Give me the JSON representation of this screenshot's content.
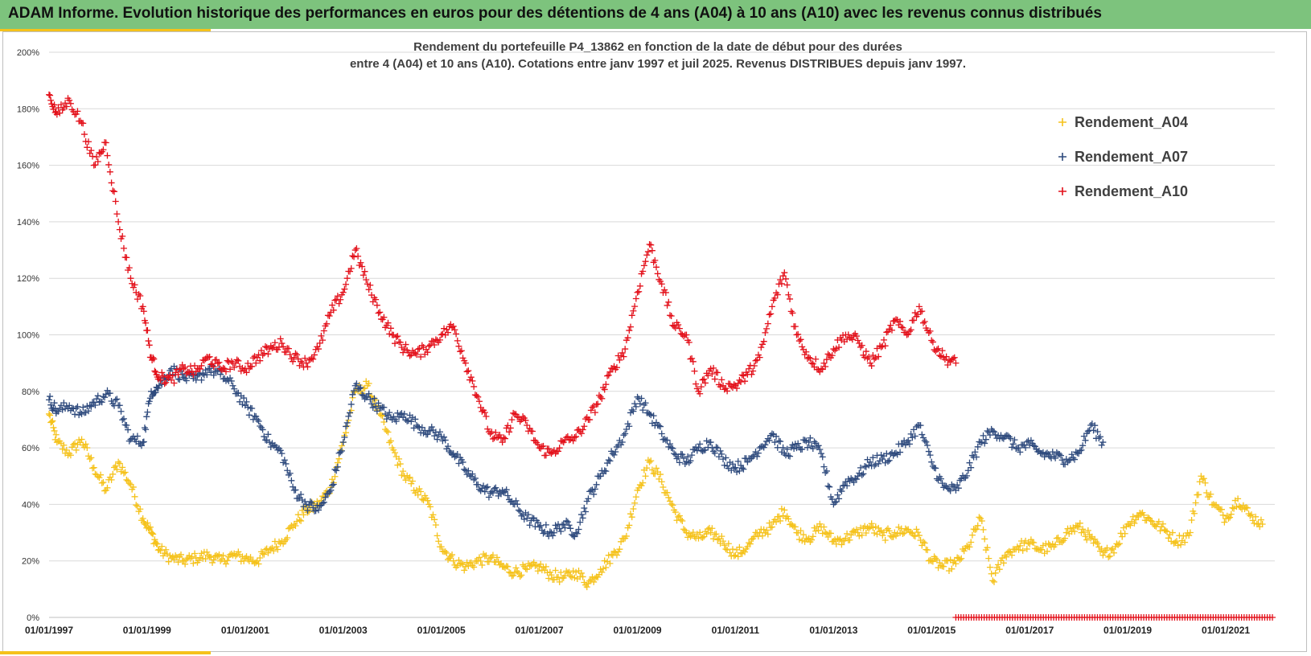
{
  "banner": {
    "title": "ADAM Informe. Evolution historique des performances en euros pour des détentions de 4 ans (A04) à 10 ans (A10) avec les revenus connus distribués"
  },
  "chart_data": {
    "type": "scatter",
    "title_line1": "Rendement du portefeuille P4_13862 en fonction de la date de début pour des durées",
    "title_line2": "entre 4 (A04) et 10 ans (A10). Cotations  entre janv 1997 et juil 2025. Revenus DISTRIBUES depuis janv 1997.",
    "x_axis": {
      "type": "date",
      "range": [
        "1997-01-01",
        "2022-01-01"
      ],
      "ticks": [
        "01/01/1997",
        "01/01/1999",
        "01/01/2001",
        "01/01/2003",
        "01/01/2005",
        "01/01/2007",
        "01/01/2009",
        "01/01/2011",
        "01/01/2013",
        "01/01/2015",
        "01/01/2017",
        "01/01/2019",
        "01/01/2021"
      ]
    },
    "y_axis": {
      "range": [
        0,
        200
      ],
      "unit": "%",
      "ticks": [
        "0%",
        "20%",
        "40%",
        "60%",
        "80%",
        "100%",
        "120%",
        "140%",
        "160%",
        "180%",
        "200%"
      ]
    },
    "grid": "horizontal",
    "legend_position": "top-right",
    "marker": "+",
    "series": [
      {
        "name": "Rendement_A04",
        "color": "#f5c21b",
        "points": [
          [
            "1997-01-01",
            72
          ],
          [
            "1997-03-01",
            62
          ],
          [
            "1997-06-01",
            58
          ],
          [
            "1997-09-01",
            63
          ],
          [
            "1997-12-01",
            53
          ],
          [
            "1998-03-01",
            45
          ],
          [
            "1998-06-01",
            55
          ],
          [
            "1998-09-01",
            47
          ],
          [
            "1998-12-01",
            35
          ],
          [
            "1999-02-01",
            30
          ],
          [
            "1999-04-01",
            24
          ],
          [
            "1999-07-01",
            21
          ],
          [
            "1999-10-01",
            20
          ],
          [
            "2000-01-01",
            21
          ],
          [
            "2000-04-01",
            22
          ],
          [
            "2000-07-01",
            20
          ],
          [
            "2000-10-01",
            22
          ],
          [
            "2001-01-01",
            21
          ],
          [
            "2001-04-01",
            20
          ],
          [
            "2001-07-01",
            24
          ],
          [
            "2001-10-01",
            27
          ],
          [
            "2002-01-01",
            33
          ],
          [
            "2002-04-01",
            38
          ],
          [
            "2002-07-01",
            40
          ],
          [
            "2002-10-01",
            46
          ],
          [
            "2003-01-01",
            62
          ],
          [
            "2003-04-01",
            80
          ],
          [
            "2003-07-01",
            82
          ],
          [
            "2003-10-01",
            72
          ],
          [
            "2004-01-01",
            60
          ],
          [
            "2004-04-01",
            50
          ],
          [
            "2004-07-01",
            45
          ],
          [
            "2004-10-01",
            40
          ],
          [
            "2005-01-01",
            25
          ],
          [
            "2005-04-01",
            20
          ],
          [
            "2005-07-01",
            18
          ],
          [
            "2005-10-01",
            20
          ],
          [
            "2006-01-01",
            21
          ],
          [
            "2006-04-01",
            18
          ],
          [
            "2006-07-01",
            16
          ],
          [
            "2006-10-01",
            17
          ],
          [
            "2007-01-01",
            18
          ],
          [
            "2007-04-01",
            15
          ],
          [
            "2007-07-01",
            14
          ],
          [
            "2007-10-01",
            16
          ],
          [
            "2008-01-01",
            12
          ],
          [
            "2008-04-01",
            17
          ],
          [
            "2008-07-01",
            22
          ],
          [
            "2008-10-01",
            28
          ],
          [
            "2009-01-01",
            45
          ],
          [
            "2009-04-01",
            55
          ],
          [
            "2009-07-01",
            48
          ],
          [
            "2009-10-01",
            38
          ],
          [
            "2010-01-01",
            30
          ],
          [
            "2010-04-01",
            28
          ],
          [
            "2010-07-01",
            30
          ],
          [
            "2010-10-01",
            27
          ],
          [
            "2011-01-01",
            22
          ],
          [
            "2011-04-01",
            25
          ],
          [
            "2011-07-01",
            30
          ],
          [
            "2011-10-01",
            32
          ],
          [
            "2012-01-01",
            38
          ],
          [
            "2012-04-01",
            30
          ],
          [
            "2012-07-01",
            28
          ],
          [
            "2012-10-01",
            32
          ],
          [
            "2013-01-01",
            27
          ],
          [
            "2013-04-01",
            28
          ],
          [
            "2013-07-01",
            30
          ],
          [
            "2013-10-01",
            32
          ],
          [
            "2014-01-01",
            29
          ],
          [
            "2014-04-01",
            30
          ],
          [
            "2014-07-01",
            31
          ],
          [
            "2014-10-01",
            29
          ],
          [
            "2015-01-01",
            20
          ],
          [
            "2015-04-01",
            18
          ],
          [
            "2015-07-01",
            19
          ],
          [
            "2015-10-01",
            25
          ],
          [
            "2016-01-01",
            35
          ],
          [
            "2016-04-01",
            13
          ],
          [
            "2016-07-01",
            22
          ],
          [
            "2016-10-01",
            25
          ],
          [
            "2017-01-01",
            26
          ],
          [
            "2017-04-01",
            24
          ],
          [
            "2017-07-01",
            25
          ],
          [
            "2017-10-01",
            30
          ],
          [
            "2018-01-01",
            32
          ],
          [
            "2018-04-01",
            28
          ],
          [
            "2018-07-01",
            22
          ],
          [
            "2018-10-01",
            25
          ],
          [
            "2019-01-01",
            33
          ],
          [
            "2019-04-01",
            37
          ],
          [
            "2019-07-01",
            34
          ],
          [
            "2019-10-01",
            31
          ],
          [
            "2020-01-01",
            27
          ],
          [
            "2020-04-01",
            29
          ],
          [
            "2020-07-01",
            50
          ],
          [
            "2020-10-01",
            40
          ],
          [
            "2021-01-01",
            35
          ],
          [
            "2021-04-01",
            42
          ],
          [
            "2021-07-01",
            36
          ],
          [
            "2021-10-01",
            33
          ]
        ]
      },
      {
        "name": "Rendement_A07",
        "color": "#2e4a7d",
        "points": [
          [
            "1997-01-01",
            77
          ],
          [
            "1997-03-01",
            73
          ],
          [
            "1997-06-01",
            75
          ],
          [
            "1997-09-01",
            72
          ],
          [
            "1997-12-01",
            76
          ],
          [
            "1998-03-01",
            79
          ],
          [
            "1998-06-01",
            75
          ],
          [
            "1998-09-01",
            63
          ],
          [
            "1998-12-01",
            62
          ],
          [
            "1999-02-01",
            80
          ],
          [
            "1999-04-01",
            82
          ],
          [
            "1999-07-01",
            88
          ],
          [
            "1999-10-01",
            85
          ],
          [
            "2000-01-01",
            84
          ],
          [
            "2000-04-01",
            88
          ],
          [
            "2000-07-01",
            86
          ],
          [
            "2000-10-01",
            82
          ],
          [
            "2001-01-01",
            75
          ],
          [
            "2001-04-01",
            70
          ],
          [
            "2001-07-01",
            62
          ],
          [
            "2001-10-01",
            58
          ],
          [
            "2002-01-01",
            45
          ],
          [
            "2002-04-01",
            40
          ],
          [
            "2002-07-01",
            38
          ],
          [
            "2002-10-01",
            45
          ],
          [
            "2003-01-01",
            62
          ],
          [
            "2003-04-01",
            82
          ],
          [
            "2003-07-01",
            78
          ],
          [
            "2003-10-01",
            74
          ],
          [
            "2004-01-01",
            70
          ],
          [
            "2004-04-01",
            72
          ],
          [
            "2004-07-01",
            68
          ],
          [
            "2004-10-01",
            66
          ],
          [
            "2005-01-01",
            64
          ],
          [
            "2005-04-01",
            58
          ],
          [
            "2005-07-01",
            52
          ],
          [
            "2005-10-01",
            47
          ],
          [
            "2006-01-01",
            44
          ],
          [
            "2006-04-01",
            45
          ],
          [
            "2006-07-01",
            40
          ],
          [
            "2006-10-01",
            35
          ],
          [
            "2007-01-01",
            32
          ],
          [
            "2007-04-01",
            30
          ],
          [
            "2007-07-01",
            33
          ],
          [
            "2007-10-01",
            30
          ],
          [
            "2008-01-01",
            42
          ],
          [
            "2008-04-01",
            50
          ],
          [
            "2008-07-01",
            58
          ],
          [
            "2008-10-01",
            65
          ],
          [
            "2009-01-01",
            78
          ],
          [
            "2009-04-01",
            72
          ],
          [
            "2009-07-01",
            65
          ],
          [
            "2009-10-01",
            58
          ],
          [
            "2010-01-01",
            55
          ],
          [
            "2010-04-01",
            60
          ],
          [
            "2010-07-01",
            62
          ],
          [
            "2010-10-01",
            56
          ],
          [
            "2011-01-01",
            53
          ],
          [
            "2011-04-01",
            55
          ],
          [
            "2011-07-01",
            60
          ],
          [
            "2011-10-01",
            65
          ],
          [
            "2012-01-01",
            58
          ],
          [
            "2012-04-01",
            60
          ],
          [
            "2012-07-01",
            62
          ],
          [
            "2012-10-01",
            58
          ],
          [
            "2013-01-01",
            40
          ],
          [
            "2013-04-01",
            48
          ],
          [
            "2013-07-01",
            50
          ],
          [
            "2013-10-01",
            55
          ],
          [
            "2014-01-01",
            56
          ],
          [
            "2014-04-01",
            58
          ],
          [
            "2014-07-01",
            62
          ],
          [
            "2014-10-01",
            68
          ],
          [
            "2015-01-01",
            55
          ],
          [
            "2015-04-01",
            46
          ],
          [
            "2015-07-01",
            45
          ],
          [
            "2015-10-01",
            52
          ],
          [
            "2016-01-01",
            62
          ],
          [
            "2016-04-01",
            66
          ],
          [
            "2016-07-01",
            64
          ],
          [
            "2016-10-01",
            60
          ],
          [
            "2017-01-01",
            61
          ],
          [
            "2017-04-01",
            58
          ],
          [
            "2017-07-01",
            57
          ],
          [
            "2017-10-01",
            56
          ],
          [
            "2018-01-01",
            58
          ],
          [
            "2018-04-01",
            68
          ],
          [
            "2018-07-01",
            62
          ]
        ]
      },
      {
        "name": "Rendement_A10",
        "color": "#e3101a",
        "points": [
          [
            "1997-01-01",
            185
          ],
          [
            "1997-03-01",
            178
          ],
          [
            "1997-06-01",
            183
          ],
          [
            "1997-09-01",
            175
          ],
          [
            "1997-12-01",
            160
          ],
          [
            "1998-03-01",
            168
          ],
          [
            "1998-06-01",
            140
          ],
          [
            "1998-09-01",
            120
          ],
          [
            "1998-12-01",
            110
          ],
          [
            "1999-02-01",
            92
          ],
          [
            "1999-04-01",
            85
          ],
          [
            "1999-07-01",
            84
          ],
          [
            "1999-10-01",
            88
          ],
          [
            "2000-01-01",
            87
          ],
          [
            "2000-04-01",
            92
          ],
          [
            "2000-07-01",
            88
          ],
          [
            "2000-10-01",
            90
          ],
          [
            "2001-01-01",
            88
          ],
          [
            "2001-04-01",
            92
          ],
          [
            "2001-07-01",
            95
          ],
          [
            "2001-10-01",
            97
          ],
          [
            "2002-01-01",
            92
          ],
          [
            "2002-04-01",
            90
          ],
          [
            "2002-07-01",
            95
          ],
          [
            "2002-10-01",
            108
          ],
          [
            "2003-01-01",
            115
          ],
          [
            "2003-04-01",
            130
          ],
          [
            "2003-07-01",
            118
          ],
          [
            "2003-10-01",
            108
          ],
          [
            "2004-01-01",
            100
          ],
          [
            "2004-04-01",
            95
          ],
          [
            "2004-07-01",
            93
          ],
          [
            "2004-10-01",
            96
          ],
          [
            "2005-01-01",
            100
          ],
          [
            "2005-04-01",
            103
          ],
          [
            "2005-07-01",
            90
          ],
          [
            "2005-10-01",
            78
          ],
          [
            "2006-01-01",
            65
          ],
          [
            "2006-04-01",
            62
          ],
          [
            "2006-07-01",
            72
          ],
          [
            "2006-10-01",
            68
          ],
          [
            "2007-01-01",
            60
          ],
          [
            "2007-04-01",
            58
          ],
          [
            "2007-07-01",
            62
          ],
          [
            "2007-10-01",
            64
          ],
          [
            "2008-01-01",
            70
          ],
          [
            "2008-04-01",
            78
          ],
          [
            "2008-07-01",
            88
          ],
          [
            "2008-10-01",
            95
          ],
          [
            "2009-01-01",
            115
          ],
          [
            "2009-04-01",
            132
          ],
          [
            "2009-07-01",
            118
          ],
          [
            "2009-10-01",
            103
          ],
          [
            "2010-01-01",
            100
          ],
          [
            "2010-04-01",
            80
          ],
          [
            "2010-07-01",
            88
          ],
          [
            "2010-10-01",
            82
          ],
          [
            "2011-01-01",
            82
          ],
          [
            "2011-04-01",
            86
          ],
          [
            "2011-07-01",
            92
          ],
          [
            "2011-10-01",
            110
          ],
          [
            "2012-01-01",
            122
          ],
          [
            "2012-04-01",
            100
          ],
          [
            "2012-07-01",
            92
          ],
          [
            "2012-10-01",
            88
          ],
          [
            "2013-01-01",
            95
          ],
          [
            "2013-04-01",
            100
          ],
          [
            "2013-07-01",
            98
          ],
          [
            "2013-10-01",
            90
          ],
          [
            "2014-01-01",
            96
          ],
          [
            "2014-04-01",
            105
          ],
          [
            "2014-07-01",
            100
          ],
          [
            "2014-10-01",
            110
          ],
          [
            "2015-01-01",
            98
          ],
          [
            "2015-04-01",
            92
          ],
          [
            "2015-07-01",
            90
          ]
        ]
      }
    ],
    "baseline_marks": {
      "series": "Rendement_A10",
      "color": "#e3101a",
      "from": "2015-07-01",
      "to": "2022-01-01",
      "value": 0
    }
  }
}
